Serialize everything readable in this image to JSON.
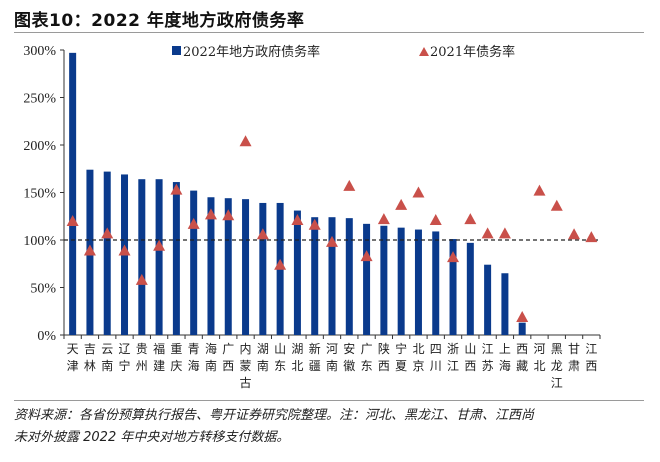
{
  "header": {
    "title": "图表10：2022 年度地方政府债务率"
  },
  "footer": {
    "source_line1": "资料来源：各省份预算执行报告、粤开证券研究院整理。注：河北、黑龙江、甘肃、江西尚",
    "source_line2": "未对外披露 2022 年中央对地方转移支付数据。"
  },
  "colors": {
    "bar": "#0a3a8c",
    "triangle": "#c9504a",
    "reference_line": "#222222"
  },
  "chart_data": {
    "type": "bar",
    "title": "图表10：2022 年度地方政府债务率",
    "xlabel": "",
    "ylabel": "",
    "ylim": [
      0,
      300
    ],
    "yticks": [
      0,
      50,
      100,
      150,
      200,
      250,
      300
    ],
    "ytick_labels": [
      "0%",
      "50%",
      "100%",
      "150%",
      "200%",
      "250%",
      "300%"
    ],
    "reference_line": 100,
    "grid": false,
    "legend_position": "top",
    "categories": [
      [
        "天",
        "津"
      ],
      [
        "吉",
        "林"
      ],
      [
        "云",
        "南"
      ],
      [
        "辽",
        "宁"
      ],
      [
        "贵",
        "州"
      ],
      [
        "福",
        "建"
      ],
      [
        "重",
        "庆"
      ],
      [
        "青",
        "海"
      ],
      [
        "海",
        "南"
      ],
      [
        "广",
        "西"
      ],
      [
        "内",
        "蒙",
        "古"
      ],
      [
        "湖",
        "南"
      ],
      [
        "山",
        "东"
      ],
      [
        "湖",
        "北"
      ],
      [
        "新",
        "疆"
      ],
      [
        "河",
        "南"
      ],
      [
        "安",
        "徽"
      ],
      [
        "广",
        "东"
      ],
      [
        "陕",
        "西"
      ],
      [
        "宁",
        "夏"
      ],
      [
        "北",
        "京"
      ],
      [
        "四",
        "川"
      ],
      [
        "浙",
        "江"
      ],
      [
        "山",
        "西"
      ],
      [
        "江",
        "苏"
      ],
      [
        "上",
        "海"
      ],
      [
        "西",
        "藏"
      ],
      [
        "河",
        "北"
      ],
      [
        "黑",
        "龙",
        "江"
      ],
      [
        "甘",
        "肃"
      ],
      [
        "江",
        "西"
      ]
    ],
    "series": [
      {
        "name": "2022年地方政府债务率",
        "type": "bar",
        "values": [
          297,
          174,
          172,
          169,
          164,
          164,
          161,
          152,
          145,
          144,
          143,
          139,
          139,
          131,
          124,
          124,
          123,
          117,
          115,
          113,
          111,
          109,
          101,
          97,
          74,
          65,
          13,
          null,
          null,
          null,
          null
        ]
      },
      {
        "name": "2021年债务率",
        "type": "scatter",
        "marker": "triangle",
        "values": [
          120,
          89,
          107,
          89,
          58,
          94,
          153,
          117,
          127,
          126,
          204,
          106,
          74,
          121,
          116,
          98,
          157,
          83,
          122,
          137,
          150,
          121,
          82,
          122,
          107,
          107,
          19,
          152,
          136,
          106,
          103
        ]
      }
    ]
  }
}
